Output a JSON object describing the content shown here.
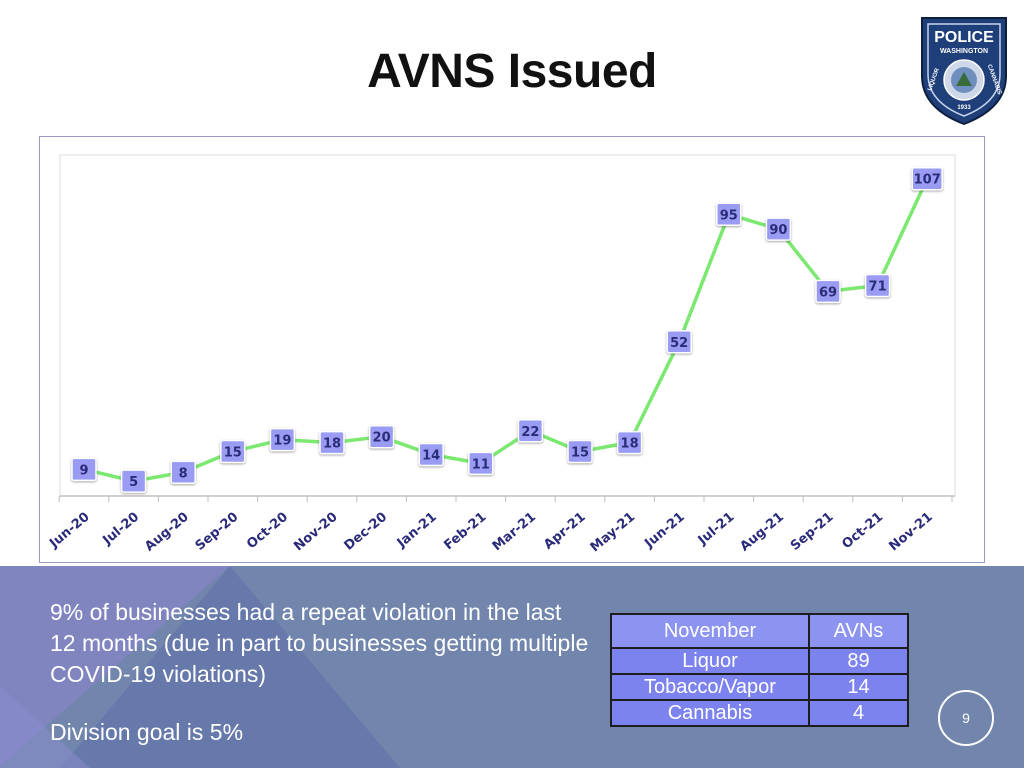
{
  "slide": {
    "title": "AVNS Issued",
    "page_number": "9",
    "summary": "9% of businesses had a repeat violation in the last 12 months (due in part to businesses getting multiple COVID-19 violations)",
    "goal": "Division goal is 5%"
  },
  "logo": {
    "top_text": "POLICE",
    "arc_text": "WASHINGTON",
    "left_text": "LIQUOR",
    "right_text": "CANNABIS",
    "year": "1933"
  },
  "table": {
    "headers": [
      "November",
      "AVNs"
    ],
    "rows": [
      [
        "Liquor",
        "89"
      ],
      [
        "Tobacco/Vapor",
        "14"
      ],
      [
        "Cannabis",
        "4"
      ]
    ]
  },
  "colors": {
    "line": "#7be870",
    "label_bg": "#9a9cf4",
    "label_text": "#2b2c78",
    "bottom_bg": "#7185ad",
    "table_cell": "#7c83ee"
  },
  "chart_data": {
    "type": "line",
    "title": "",
    "xlabel": "",
    "ylabel": "",
    "ylim": [
      0,
      115
    ],
    "categories": [
      "Jun-20",
      "Jul-20",
      "Aug-20",
      "Sep-20",
      "Oct-20",
      "Nov-20",
      "Dec-20",
      "Jan-21",
      "Feb-21",
      "Mar-21",
      "Apr-21",
      "May-21",
      "Jun-21",
      "Jul-21",
      "Aug-21",
      "Sep-21",
      "Oct-21",
      "Nov-21"
    ],
    "series": [
      {
        "name": "AVNs Issued",
        "values": [
          9,
          5,
          8,
          15,
          19,
          18,
          20,
          14,
          11,
          22,
          15,
          18,
          52,
          95,
          90,
          69,
          71,
          107
        ]
      }
    ]
  }
}
